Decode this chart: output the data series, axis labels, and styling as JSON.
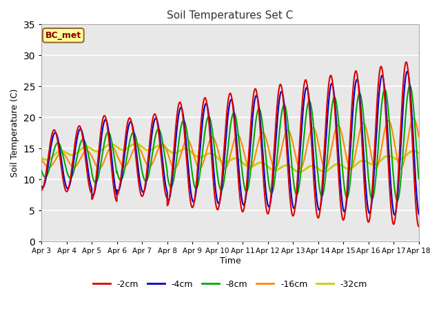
{
  "title": "Soil Temperatures Set C",
  "xlabel": "Time",
  "ylabel": "Soil Temperature (C)",
  "ylim": [
    0,
    35
  ],
  "annotation_text": "BC_met",
  "annotation_color": "#8B0000",
  "annotation_bg": "#FFFF99",
  "series_colors": {
    "-2cm": "#DD0000",
    "-4cm": "#0000CC",
    "-8cm": "#00AA00",
    "-16cm": "#FF8800",
    "-32cm": "#CCCC00"
  },
  "series_linewidths": {
    "-2cm": 1.5,
    "-4cm": 1.5,
    "-8cm": 1.5,
    "-16cm": 1.5,
    "-32cm": 2.0
  },
  "plot_bg": "#E8E8E8",
  "fig_bg": "#FFFFFF",
  "grid_color": "#FFFFFF",
  "yticks": [
    0,
    5,
    10,
    15,
    20,
    25,
    30,
    35
  ],
  "tick_labels": [
    "Apr 3",
    "Apr 4",
    "Apr 5",
    "Apr 6",
    "Apr 7",
    "Apr 8",
    "Apr 9",
    "Apr 10",
    "Apr 11",
    "Apr 12",
    "Apr 13",
    "Apr 14",
    "Apr 15",
    "Apr 16",
    "Apr 17",
    "Apr 18"
  ],
  "tick_positions": [
    0,
    24,
    48,
    72,
    96,
    120,
    144,
    168,
    192,
    216,
    240,
    264,
    288,
    312,
    336,
    360
  ]
}
